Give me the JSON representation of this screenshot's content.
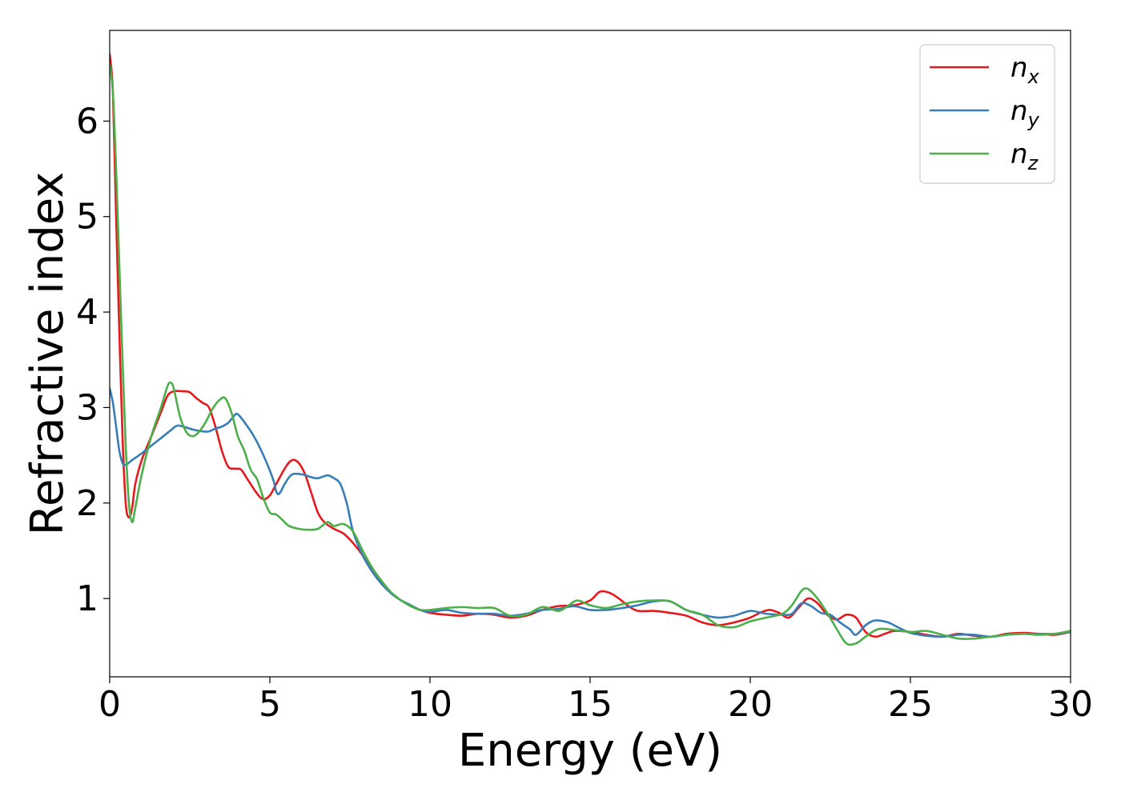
{
  "chart_data": {
    "type": "line",
    "title": "",
    "xlabel": "Energy (eV)",
    "ylabel": "Refractive index",
    "xlim": [
      0,
      30
    ],
    "ylim": [
      0.18,
      6.95
    ],
    "xticks": [
      0,
      5,
      10,
      15,
      20,
      25,
      30
    ],
    "xtick_labels": [
      "0",
      "5",
      "10",
      "15",
      "20",
      "25",
      "30"
    ],
    "yticks": [
      1,
      2,
      3,
      4,
      5,
      6
    ],
    "ytick_labels": [
      "1",
      "2",
      "3",
      "4",
      "5",
      "6"
    ],
    "grid": false,
    "legend_position": "top-right",
    "series": [
      {
        "name": "n_x",
        "base": "n",
        "sub": "x",
        "color": "#e41a1c",
        "points": [
          [
            0,
            6.7
          ],
          [
            0.1,
            6.3
          ],
          [
            0.2,
            5.0
          ],
          [
            0.3,
            3.8
          ],
          [
            0.4,
            2.7
          ],
          [
            0.5,
            2.0
          ],
          [
            0.6,
            1.85
          ],
          [
            0.7,
            1.95
          ],
          [
            0.8,
            2.2
          ],
          [
            1.0,
            2.45
          ],
          [
            1.3,
            2.7
          ],
          [
            1.6,
            2.95
          ],
          [
            1.8,
            3.12
          ],
          [
            2.0,
            3.17
          ],
          [
            2.3,
            3.17
          ],
          [
            2.5,
            3.16
          ],
          [
            2.7,
            3.1
          ],
          [
            2.9,
            3.05
          ],
          [
            3.1,
            3.0
          ],
          [
            3.3,
            2.8
          ],
          [
            3.5,
            2.55
          ],
          [
            3.7,
            2.38
          ],
          [
            3.9,
            2.36
          ],
          [
            4.1,
            2.35
          ],
          [
            4.3,
            2.25
          ],
          [
            4.6,
            2.1
          ],
          [
            4.8,
            2.04
          ],
          [
            5.0,
            2.08
          ],
          [
            5.2,
            2.2
          ],
          [
            5.5,
            2.38
          ],
          [
            5.7,
            2.45
          ],
          [
            5.9,
            2.42
          ],
          [
            6.1,
            2.3
          ],
          [
            6.3,
            2.1
          ],
          [
            6.5,
            1.9
          ],
          [
            6.7,
            1.8
          ],
          [
            7.0,
            1.73
          ],
          [
            7.3,
            1.68
          ],
          [
            7.6,
            1.58
          ],
          [
            7.9,
            1.45
          ],
          [
            8.2,
            1.28
          ],
          [
            8.5,
            1.15
          ],
          [
            8.8,
            1.05
          ],
          [
            9.1,
            0.98
          ],
          [
            9.4,
            0.92
          ],
          [
            9.7,
            0.88
          ],
          [
            10.0,
            0.85
          ],
          [
            10.5,
            0.83
          ],
          [
            11.0,
            0.82
          ],
          [
            11.5,
            0.84
          ],
          [
            12.0,
            0.83
          ],
          [
            12.5,
            0.8
          ],
          [
            13.0,
            0.82
          ],
          [
            13.5,
            0.88
          ],
          [
            14.0,
            0.92
          ],
          [
            14.5,
            0.93
          ],
          [
            15.0,
            0.98
          ],
          [
            15.3,
            1.07
          ],
          [
            15.6,
            1.06
          ],
          [
            15.9,
            1.0
          ],
          [
            16.2,
            0.92
          ],
          [
            16.5,
            0.87
          ],
          [
            17.0,
            0.87
          ],
          [
            17.5,
            0.85
          ],
          [
            18.0,
            0.82
          ],
          [
            18.5,
            0.75
          ],
          [
            19.0,
            0.72
          ],
          [
            19.5,
            0.75
          ],
          [
            20.0,
            0.8
          ],
          [
            20.3,
            0.85
          ],
          [
            20.6,
            0.88
          ],
          [
            20.9,
            0.85
          ],
          [
            21.2,
            0.8
          ],
          [
            21.5,
            0.9
          ],
          [
            21.8,
            1.0
          ],
          [
            22.1,
            0.95
          ],
          [
            22.4,
            0.83
          ],
          [
            22.7,
            0.78
          ],
          [
            23.0,
            0.83
          ],
          [
            23.3,
            0.8
          ],
          [
            23.6,
            0.65
          ],
          [
            23.9,
            0.6
          ],
          [
            24.2,
            0.63
          ],
          [
            24.5,
            0.66
          ],
          [
            25.0,
            0.65
          ],
          [
            25.5,
            0.62
          ],
          [
            26.0,
            0.6
          ],
          [
            26.5,
            0.63
          ],
          [
            27.0,
            0.61
          ],
          [
            27.5,
            0.6
          ],
          [
            28.0,
            0.63
          ],
          [
            28.5,
            0.64
          ],
          [
            29.0,
            0.63
          ],
          [
            29.5,
            0.62
          ],
          [
            30.0,
            0.65
          ]
        ]
      },
      {
        "name": "n_y",
        "base": "n",
        "sub": "y",
        "color": "#377eb8",
        "points": [
          [
            0,
            3.2
          ],
          [
            0.1,
            3.05
          ],
          [
            0.2,
            2.8
          ],
          [
            0.3,
            2.55
          ],
          [
            0.4,
            2.42
          ],
          [
            0.5,
            2.4
          ],
          [
            0.7,
            2.45
          ],
          [
            1.0,
            2.52
          ],
          [
            1.3,
            2.6
          ],
          [
            1.6,
            2.68
          ],
          [
            1.9,
            2.76
          ],
          [
            2.1,
            2.81
          ],
          [
            2.3,
            2.8
          ],
          [
            2.6,
            2.77
          ],
          [
            2.9,
            2.75
          ],
          [
            3.1,
            2.75
          ],
          [
            3.3,
            2.78
          ],
          [
            3.5,
            2.8
          ],
          [
            3.7,
            2.84
          ],
          [
            3.9,
            2.92
          ],
          [
            4.0,
            2.93
          ],
          [
            4.2,
            2.85
          ],
          [
            4.5,
            2.7
          ],
          [
            4.8,
            2.5
          ],
          [
            5.1,
            2.25
          ],
          [
            5.2,
            2.12
          ],
          [
            5.3,
            2.1
          ],
          [
            5.5,
            2.22
          ],
          [
            5.7,
            2.3
          ],
          [
            6.0,
            2.3
          ],
          [
            6.3,
            2.27
          ],
          [
            6.5,
            2.26
          ],
          [
            6.8,
            2.29
          ],
          [
            7.0,
            2.26
          ],
          [
            7.2,
            2.2
          ],
          [
            7.4,
            2.0
          ],
          [
            7.6,
            1.7
          ],
          [
            7.9,
            1.45
          ],
          [
            8.2,
            1.28
          ],
          [
            8.5,
            1.15
          ],
          [
            8.8,
            1.05
          ],
          [
            9.1,
            0.98
          ],
          [
            9.4,
            0.93
          ],
          [
            9.7,
            0.88
          ],
          [
            10.0,
            0.86
          ],
          [
            10.5,
            0.88
          ],
          [
            11.0,
            0.85
          ],
          [
            11.5,
            0.84
          ],
          [
            12.0,
            0.84
          ],
          [
            12.5,
            0.82
          ],
          [
            13.0,
            0.84
          ],
          [
            13.5,
            0.88
          ],
          [
            14.0,
            0.89
          ],
          [
            14.5,
            0.92
          ],
          [
            15.0,
            0.88
          ],
          [
            15.5,
            0.88
          ],
          [
            16.0,
            0.9
          ],
          [
            16.5,
            0.93
          ],
          [
            17.0,
            0.97
          ],
          [
            17.5,
            0.97
          ],
          [
            18.0,
            0.88
          ],
          [
            18.5,
            0.83
          ],
          [
            19.0,
            0.8
          ],
          [
            19.5,
            0.82
          ],
          [
            20.0,
            0.87
          ],
          [
            20.5,
            0.84
          ],
          [
            21.0,
            0.83
          ],
          [
            21.3,
            0.84
          ],
          [
            21.6,
            0.95
          ],
          [
            21.9,
            0.92
          ],
          [
            22.2,
            0.85
          ],
          [
            22.5,
            0.83
          ],
          [
            22.8,
            0.75
          ],
          [
            23.1,
            0.68
          ],
          [
            23.3,
            0.62
          ],
          [
            23.6,
            0.72
          ],
          [
            23.9,
            0.77
          ],
          [
            24.3,
            0.75
          ],
          [
            24.6,
            0.7
          ],
          [
            25.0,
            0.64
          ],
          [
            25.5,
            0.61
          ],
          [
            26.0,
            0.6
          ],
          [
            26.5,
            0.62
          ],
          [
            27.0,
            0.62
          ],
          [
            27.5,
            0.6
          ],
          [
            28.0,
            0.62
          ],
          [
            28.5,
            0.63
          ],
          [
            29.0,
            0.63
          ],
          [
            29.5,
            0.63
          ],
          [
            30.0,
            0.65
          ]
        ]
      },
      {
        "name": "n_z",
        "base": "n",
        "sub": "z",
        "color": "#4daf4a",
        "points": [
          [
            0,
            6.6
          ],
          [
            0.1,
            6.3
          ],
          [
            0.2,
            5.5
          ],
          [
            0.3,
            4.5
          ],
          [
            0.4,
            3.5
          ],
          [
            0.5,
            2.6
          ],
          [
            0.6,
            2.0
          ],
          [
            0.7,
            1.8
          ],
          [
            0.8,
            1.95
          ],
          [
            1.0,
            2.3
          ],
          [
            1.3,
            2.7
          ],
          [
            1.6,
            3.0
          ],
          [
            1.8,
            3.22
          ],
          [
            1.9,
            3.26
          ],
          [
            2.0,
            3.2
          ],
          [
            2.2,
            2.9
          ],
          [
            2.4,
            2.74
          ],
          [
            2.6,
            2.7
          ],
          [
            2.8,
            2.75
          ],
          [
            3.0,
            2.85
          ],
          [
            3.2,
            2.98
          ],
          [
            3.4,
            3.07
          ],
          [
            3.6,
            3.1
          ],
          [
            3.8,
            2.95
          ],
          [
            4.0,
            2.7
          ],
          [
            4.2,
            2.55
          ],
          [
            4.4,
            2.35
          ],
          [
            4.6,
            2.25
          ],
          [
            4.8,
            2.05
          ],
          [
            5.0,
            1.9
          ],
          [
            5.2,
            1.88
          ],
          [
            5.4,
            1.82
          ],
          [
            5.6,
            1.76
          ],
          [
            5.9,
            1.73
          ],
          [
            6.2,
            1.72
          ],
          [
            6.5,
            1.73
          ],
          [
            6.8,
            1.8
          ],
          [
            7.0,
            1.76
          ],
          [
            7.3,
            1.78
          ],
          [
            7.6,
            1.7
          ],
          [
            7.9,
            1.5
          ],
          [
            8.2,
            1.32
          ],
          [
            8.5,
            1.18
          ],
          [
            8.8,
            1.06
          ],
          [
            9.1,
            0.98
          ],
          [
            9.4,
            0.92
          ],
          [
            9.7,
            0.88
          ],
          [
            10.0,
            0.88
          ],
          [
            10.5,
            0.9
          ],
          [
            11.0,
            0.91
          ],
          [
            11.5,
            0.9
          ],
          [
            12.0,
            0.9
          ],
          [
            12.5,
            0.82
          ],
          [
            13.0,
            0.83
          ],
          [
            13.5,
            0.91
          ],
          [
            14.0,
            0.87
          ],
          [
            14.3,
            0.92
          ],
          [
            14.6,
            0.98
          ],
          [
            15.0,
            0.93
          ],
          [
            15.5,
            0.9
          ],
          [
            16.0,
            0.94
          ],
          [
            16.5,
            0.97
          ],
          [
            17.0,
            0.98
          ],
          [
            17.5,
            0.97
          ],
          [
            18.0,
            0.88
          ],
          [
            18.5,
            0.83
          ],
          [
            19.0,
            0.72
          ],
          [
            19.5,
            0.7
          ],
          [
            20.0,
            0.76
          ],
          [
            20.5,
            0.8
          ],
          [
            21.0,
            0.84
          ],
          [
            21.3,
            0.93
          ],
          [
            21.6,
            1.08
          ],
          [
            21.8,
            1.1
          ],
          [
            22.1,
            1.0
          ],
          [
            22.4,
            0.85
          ],
          [
            22.7,
            0.68
          ],
          [
            23.0,
            0.53
          ],
          [
            23.3,
            0.53
          ],
          [
            23.6,
            0.6
          ],
          [
            24.0,
            0.68
          ],
          [
            24.5,
            0.67
          ],
          [
            25.0,
            0.65
          ],
          [
            25.5,
            0.66
          ],
          [
            26.0,
            0.62
          ],
          [
            26.5,
            0.58
          ],
          [
            27.0,
            0.58
          ],
          [
            27.5,
            0.6
          ],
          [
            28.0,
            0.62
          ],
          [
            28.5,
            0.63
          ],
          [
            29.0,
            0.62
          ],
          [
            29.5,
            0.63
          ],
          [
            30.0,
            0.66
          ]
        ]
      }
    ]
  }
}
